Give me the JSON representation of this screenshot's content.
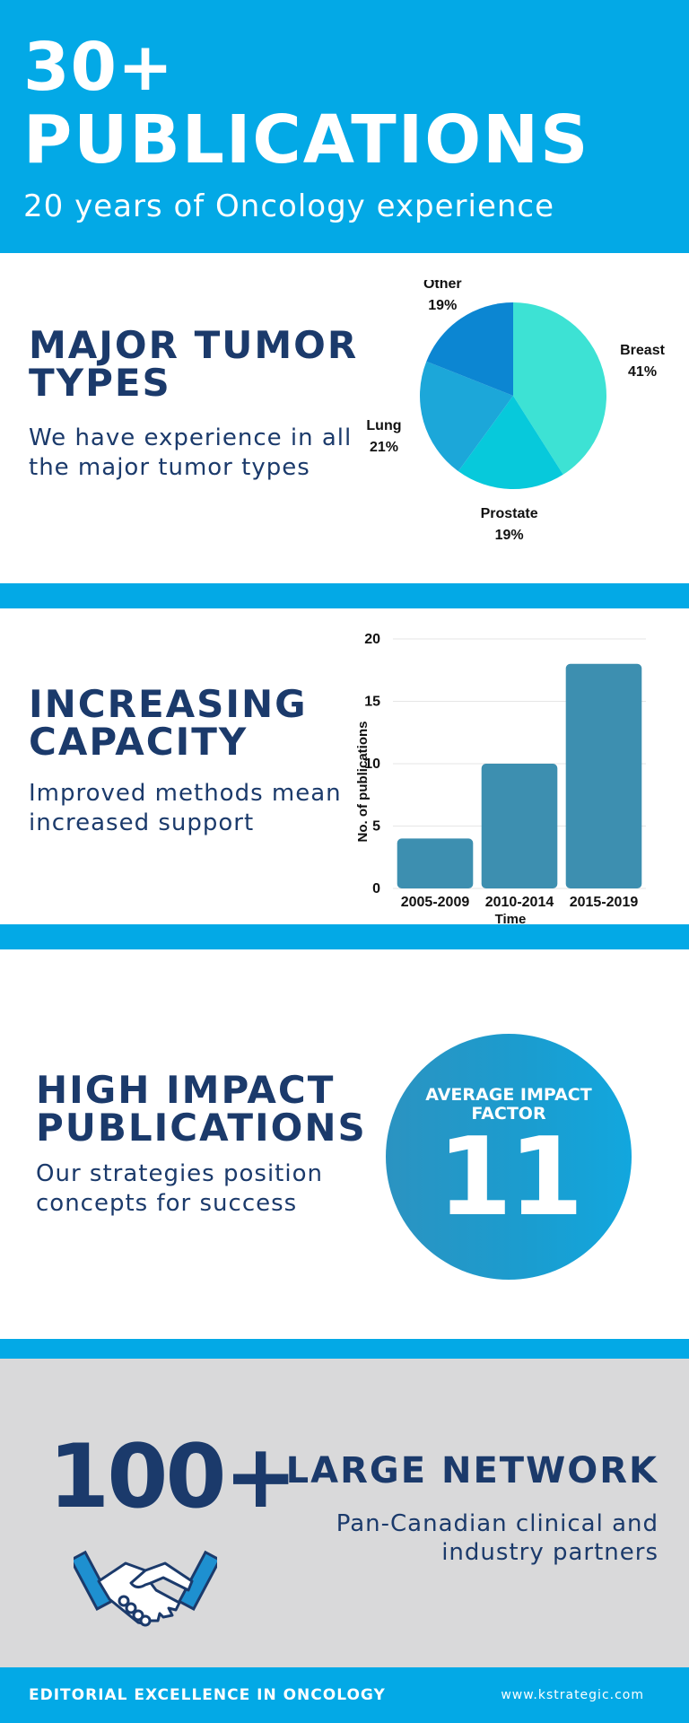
{
  "header": {
    "count": "30+",
    "title": "PUBLICATIONS",
    "subtitle": "20 years of Oncology experience"
  },
  "tumor_section": {
    "title_line1": "MAJOR TUMOR",
    "title_line2": "TYPES",
    "body_line1": "We have experience in all",
    "body_line2": "the major tumor types"
  },
  "capacity_section": {
    "title_line1": "INCREASING",
    "title_line2": "CAPACITY",
    "body_line1": "Improved methods mean",
    "body_line2": "increased support"
  },
  "impact_section": {
    "title_line1": "HIGH IMPACT",
    "title_line2": "PUBLICATIONS",
    "body_line1": "Our strategies position",
    "body_line2": "concepts for success",
    "circle_label_line1": "AVERAGE IMPACT",
    "circle_label_line2": "FACTOR",
    "circle_value": "11"
  },
  "network_section": {
    "count": "100+",
    "title": "LARGE NETWORK",
    "body_line1": "Pan-Canadian clinical and",
    "body_line2": "industry partners",
    "icon": "handshake-icon"
  },
  "footer": {
    "tagline": "EDITORIAL EXCELLENCE IN ONCOLOGY",
    "url": "www.kstrategic.com"
  },
  "colors": {
    "brand_blue": "#03a9e6",
    "navy": "#1b3a6b",
    "bar": "#3d8fb0",
    "network_bg": "#d9d9da",
    "handshake_accent": "#1e90d0"
  },
  "chart_data": [
    {
      "type": "pie",
      "categories": [
        "Breast",
        "Prostate",
        "Lung",
        "Other"
      ],
      "values": [
        41,
        19,
        21,
        19
      ],
      "labels": [
        "41%",
        "19%",
        "21%",
        "19%"
      ],
      "colors": [
        "#3de2d4",
        "#07c9db",
        "#1ca7d9",
        "#0c86d2"
      ]
    },
    {
      "type": "bar",
      "categories": [
        "2005-2009",
        "2010-2014",
        "2015-2019"
      ],
      "values": [
        4,
        10,
        18
      ],
      "xlabel": "Time",
      "ylabel": "No. of publications",
      "ylim": [
        0,
        20
      ],
      "yticks": [
        0,
        5,
        10,
        15,
        20
      ],
      "grid": true
    }
  ]
}
